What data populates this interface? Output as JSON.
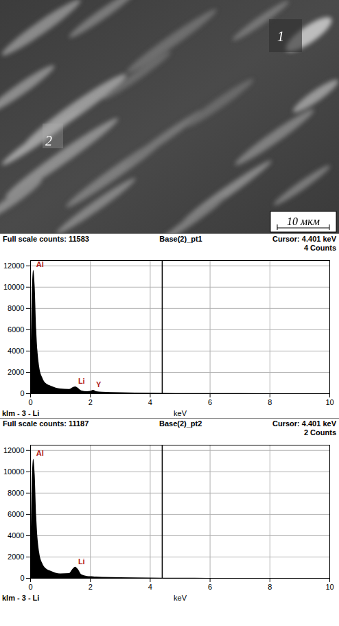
{
  "micrograph": {
    "labels": [
      "1",
      "2"
    ],
    "scale_bar": "10 мкм"
  },
  "chart_data": [
    {
      "type": "area",
      "title": "Full scale counts: 11583",
      "subtitle": "Base(2)_pt1",
      "cursor": "Cursor: 4.401 keV",
      "cursor_counts": "4 Counts",
      "cursor_x": 4.401,
      "x_label": "keV",
      "footer": "klm - 3 - Li",
      "x": [
        0,
        0.05,
        0.1,
        0.15,
        0.2,
        0.3,
        0.4,
        0.5,
        0.7,
        1.0,
        1.3,
        1.4,
        1.5,
        1.6,
        1.7,
        1.9,
        2.0,
        2.1,
        2.2,
        2.4,
        3,
        4,
        5,
        6,
        8,
        10
      ],
      "values": [
        0,
        9000,
        11583,
        10000,
        6000,
        2500,
        1500,
        1000,
        700,
        450,
        400,
        550,
        650,
        500,
        280,
        200,
        220,
        320,
        200,
        150,
        100,
        50,
        20,
        10,
        5,
        0
      ],
      "color": "#000000",
      "annotations": [
        {
          "text": "Al",
          "x": 0.1
        },
        {
          "text": "Li",
          "x": 1.5
        },
        {
          "text": "Y",
          "x": 2.1
        }
      ],
      "xlim": [
        0,
        10
      ],
      "xticks": [
        0,
        2,
        4,
        6,
        8,
        10
      ],
      "ylim": [
        0,
        12500
      ],
      "yticks": [
        0,
        2000,
        4000,
        6000,
        8000,
        10000,
        12000
      ],
      "grid": true
    },
    {
      "type": "area",
      "title": "Full scale counts: 11187",
      "subtitle": "Base(2)_pt2",
      "cursor": "Cursor: 4.401 keV",
      "cursor_counts": "2 Counts",
      "cursor_x": 4.401,
      "x_label": "keV",
      "footer": "klm - 3 - Li",
      "x": [
        0,
        0.05,
        0.1,
        0.15,
        0.2,
        0.3,
        0.4,
        0.5,
        0.7,
        1.0,
        1.3,
        1.4,
        1.5,
        1.6,
        1.7,
        1.9,
        2.0,
        2.1,
        2.2,
        2.4,
        3,
        4,
        5,
        6,
        8,
        10
      ],
      "values": [
        0,
        8800,
        11187,
        9700,
        5800,
        2400,
        1400,
        950,
        650,
        420,
        450,
        800,
        1050,
        800,
        350,
        180,
        160,
        150,
        130,
        100,
        70,
        40,
        15,
        8,
        4,
        0
      ],
      "color": "#000000",
      "annotations": [
        {
          "text": "Al",
          "x": 0.1
        },
        {
          "text": "Li",
          "x": 1.5
        }
      ],
      "xlim": [
        0,
        10
      ],
      "xticks": [
        0,
        2,
        4,
        6,
        8,
        10
      ],
      "ylim": [
        0,
        12500
      ],
      "yticks": [
        0,
        2000,
        4000,
        6000,
        8000,
        10000,
        12000
      ],
      "grid": true
    }
  ]
}
